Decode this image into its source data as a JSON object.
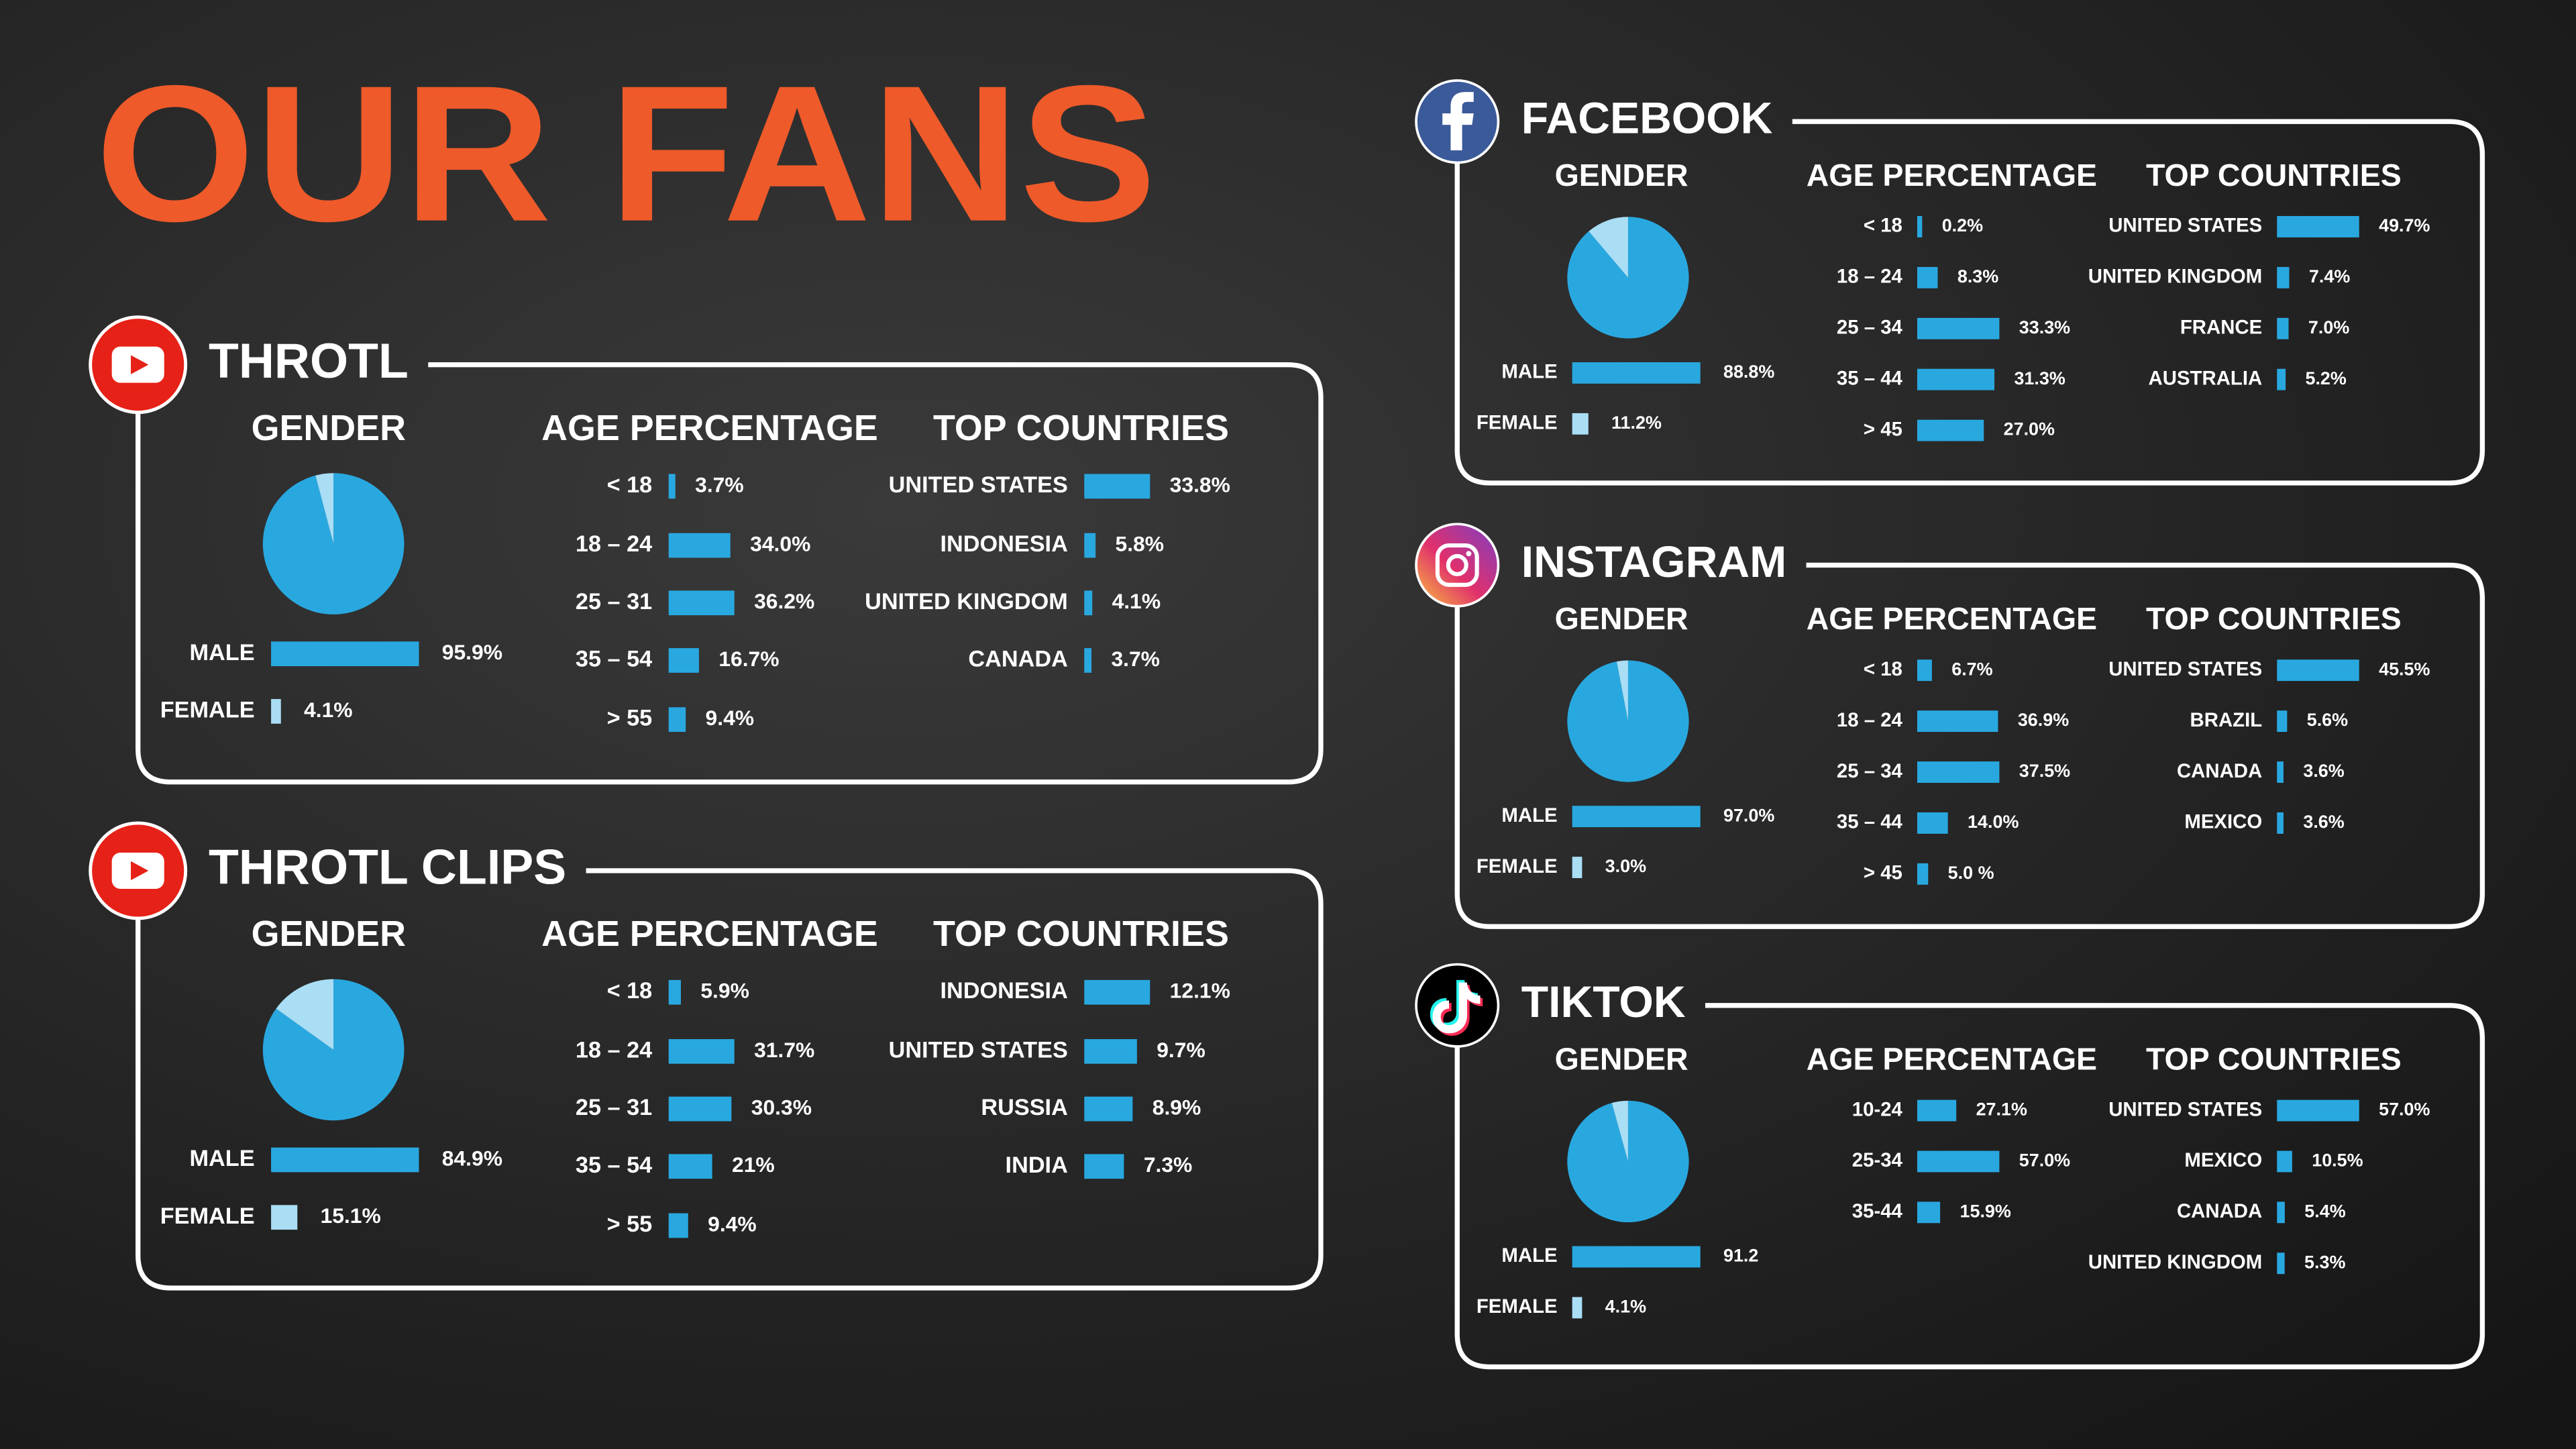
{
  "title": "OUR FANS",
  "panels": [
    {
      "platform": "THROTL",
      "gender": {
        "heading": "GENDER",
        "categories": [
          "MALE",
          "FEMALE"
        ],
        "values": [
          95.9,
          4.1
        ],
        "value_labels": [
          "95.9%",
          "4.1%"
        ]
      },
      "age": {
        "heading": "AGE PERCENTAGE",
        "categories": [
          "< 18",
          "18 – 24",
          "25 – 31",
          "35 – 54",
          "> 55"
        ],
        "values": [
          3.7,
          34.0,
          36.2,
          16.7,
          9.4
        ],
        "value_labels": [
          "3.7%",
          "34.0%",
          "36.2%",
          "16.7%",
          "9.4%"
        ]
      },
      "countries": {
        "heading": "TOP COUNTRIES",
        "categories": [
          "UNITED STATES",
          "INDONESIA",
          "UNITED KINGDOM",
          "CANADA"
        ],
        "values": [
          33.8,
          5.8,
          4.1,
          3.7
        ],
        "value_labels": [
          "33.8%",
          "5.8%",
          "4.1%",
          "3.7%"
        ]
      }
    },
    {
      "platform": "THROTL CLIPS",
      "gender": {
        "heading": "GENDER",
        "categories": [
          "MALE",
          "FEMALE"
        ],
        "values": [
          84.9,
          15.1
        ],
        "value_labels": [
          "84.9%",
          "15.1%"
        ]
      },
      "age": {
        "heading": "AGE PERCENTAGE",
        "categories": [
          "< 18",
          "18 – 24",
          "25 – 31",
          "35 – 54",
          "> 55"
        ],
        "values": [
          5.9,
          31.7,
          30.3,
          21,
          9.4
        ],
        "value_labels": [
          "5.9%",
          "31.7%",
          "30.3%",
          "21%",
          "9.4%"
        ]
      },
      "countries": {
        "heading": "TOP COUNTRIES",
        "categories": [
          "INDONESIA",
          "UNITED STATES",
          "RUSSIA",
          "INDIA"
        ],
        "values": [
          12.1,
          9.7,
          8.9,
          7.3
        ],
        "value_labels": [
          "12.1%",
          "9.7%",
          "8.9%",
          "7.3%"
        ]
      }
    },
    {
      "platform": "FACEBOOK",
      "gender": {
        "heading": "GENDER",
        "categories": [
          "MALE",
          "FEMALE"
        ],
        "values": [
          88.8,
          11.2
        ],
        "value_labels": [
          "88.8%",
          "11.2%"
        ]
      },
      "age": {
        "heading": "AGE PERCENTAGE",
        "categories": [
          "< 18",
          "18 – 24",
          "25 – 34",
          "35 – 44",
          "> 45"
        ],
        "values": [
          0.2,
          8.3,
          33.3,
          31.3,
          27.0
        ],
        "value_labels": [
          "0.2%",
          "8.3%",
          "33.3%",
          "31.3%",
          "27.0%"
        ]
      },
      "countries": {
        "heading": "TOP COUNTRIES",
        "categories": [
          "UNITED STATES",
          "UNITED KINGDOM",
          "FRANCE",
          "AUSTRALIA"
        ],
        "values": [
          49.7,
          7.4,
          7.0,
          5.2
        ],
        "value_labels": [
          "49.7%",
          "7.4%",
          "7.0%",
          "5.2%"
        ]
      }
    },
    {
      "platform": "INSTAGRAM",
      "gender": {
        "heading": "GENDER",
        "categories": [
          "MALE",
          "FEMALE"
        ],
        "values": [
          97.0,
          3.0
        ],
        "value_labels": [
          "97.0%",
          "3.0%"
        ]
      },
      "age": {
        "heading": "AGE PERCENTAGE",
        "categories": [
          "< 18",
          "18 – 24",
          "25 – 34",
          "35 – 44",
          "> 45"
        ],
        "values": [
          6.7,
          36.9,
          37.5,
          14.0,
          5.0
        ],
        "value_labels": [
          "6.7%",
          "36.9%",
          "37.5%",
          "14.0%",
          "5.0 %"
        ]
      },
      "countries": {
        "heading": "TOP COUNTRIES",
        "categories": [
          "UNITED STATES",
          "BRAZIL",
          "CANADA",
          "MEXICO"
        ],
        "values": [
          45.5,
          5.6,
          3.6,
          3.6
        ],
        "value_labels": [
          "45.5%",
          "5.6%",
          "3.6%",
          "3.6%"
        ]
      }
    },
    {
      "platform": "TIKTOK",
      "gender": {
        "heading": "GENDER",
        "categories": [
          "MALE",
          "FEMALE"
        ],
        "values": [
          91.2,
          4.1
        ],
        "value_labels": [
          "91.2",
          "4.1%"
        ]
      },
      "age": {
        "heading": "AGE PERCENTAGE",
        "categories": [
          "10-24",
          "25-34",
          "35-44"
        ],
        "values": [
          27.1,
          57.0,
          15.9
        ],
        "value_labels": [
          "27.1%",
          "57.0%",
          "15.9%"
        ]
      },
      "countries": {
        "heading": "TOP COUNTRIES",
        "categories": [
          "UNITED STATES",
          "MEXICO",
          "CANADA",
          "UNITED KINGDOM"
        ],
        "values": [
          57.0,
          10.5,
          5.4,
          5.3
        ],
        "value_labels": [
          "57.0%",
          "10.5%",
          "5.4%",
          "5.3%"
        ]
      }
    }
  ]
}
